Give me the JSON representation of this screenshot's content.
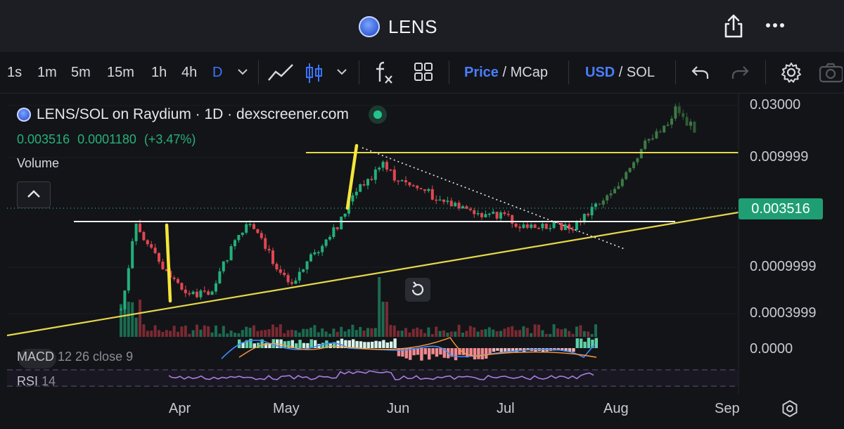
{
  "app": {
    "title": "LENS"
  },
  "toolbar": {
    "timeframes": [
      "1s",
      "1m",
      "5m",
      "15m",
      "1h",
      "4h",
      "D"
    ],
    "active_timeframe": "D",
    "price_label": "Price",
    "mcap_label": "MCap",
    "usd_label": "USD",
    "sol_label": "SOL",
    "slash": "/"
  },
  "legend": {
    "title": "LENS/SOL on Raydium · 1D · dexscreener.com",
    "price": "0.003516",
    "change": "0.0001180",
    "change_pct": "(+3.47%)",
    "volume_label": "Volume"
  },
  "price_axis": {
    "labels": [
      "0.03000",
      "0.009999",
      "0.0009999",
      "0.0003999",
      "0.0000"
    ],
    "current_price": "0.003516"
  },
  "indicators": {
    "macd_name": "MACD",
    "macd_params": "12 26 close 9",
    "rsi_name": "RSI",
    "rsi_params": "14"
  },
  "time_axis": {
    "months": [
      "Apr",
      "May",
      "Jun",
      "Jul",
      "Aug",
      "Sep"
    ]
  },
  "colors": {
    "up": "#22b07a",
    "down": "#e04752",
    "accent": "#3c74ff",
    "trendline": "#e6d84a",
    "support": "#ffffff"
  },
  "icons": [
    "share-icon",
    "more-icon",
    "line-chart-icon",
    "candles-icon",
    "chevron-down-icon",
    "fx-icon",
    "layout-icon",
    "undo-icon",
    "redo-icon",
    "gear-icon",
    "camera-icon",
    "reset-icon",
    "chevron-up-icon"
  ]
}
